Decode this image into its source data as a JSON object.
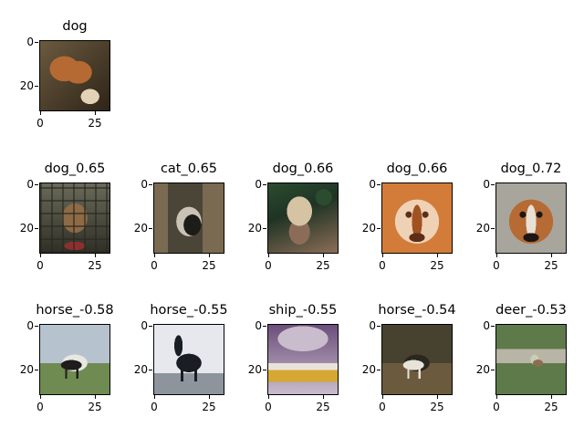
{
  "query": {
    "title": "dog",
    "palette": [
      "#6b5a3f",
      "#b56a33",
      "#e3d2b6",
      "#2e2418"
    ]
  },
  "rows": [
    [
      {
        "title": "dog_0.65",
        "palette": [
          "#6a6a5a",
          "#8e6a46",
          "#2f2f27",
          "#8e2f2f"
        ]
      },
      {
        "title": "cat_0.65",
        "palette": [
          "#4a4536",
          "#7a6a52",
          "#1e1c18",
          "#c9c2b5"
        ]
      },
      {
        "title": "dog_0.66",
        "palette": [
          "#1f3324",
          "#d6c3a4",
          "#2b4c2f",
          "#8b6d57"
        ]
      },
      {
        "title": "dog_0.66",
        "palette": [
          "#d37c39",
          "#efd2b5",
          "#a05223",
          "#5e2d18"
        ]
      },
      {
        "title": "dog_0.72",
        "palette": [
          "#a8a59c",
          "#b56b33",
          "#e9e1d5",
          "#1c1714"
        ]
      }
    ],
    [
      {
        "title": "horse_-0.58",
        "palette": [
          "#b7c2cf",
          "#6f8b52",
          "#1e1c1c",
          "#e8e8e2"
        ]
      },
      {
        "title": "horse_-0.55",
        "palette": [
          "#e6e8ee",
          "#1a1e24",
          "#8d949c",
          "#36404b"
        ]
      },
      {
        "title": "ship_-0.55",
        "palette": [
          "#6b4e7a",
          "#c9bccd",
          "#d6a833",
          "#e9e3da"
        ]
      },
      {
        "title": "horse_-0.54",
        "palette": [
          "#47422f",
          "#6c5a3e",
          "#e8e3d8",
          "#2a271f"
        ]
      },
      {
        "title": "deer_-0.53",
        "palette": [
          "#5f7a4a",
          "#c9ccb9",
          "#8c6e4e",
          "#b8b4a6"
        ]
      }
    ]
  ],
  "axes": {
    "yticks": [
      "0",
      "20"
    ],
    "xticks": [
      "0",
      "25"
    ]
  }
}
